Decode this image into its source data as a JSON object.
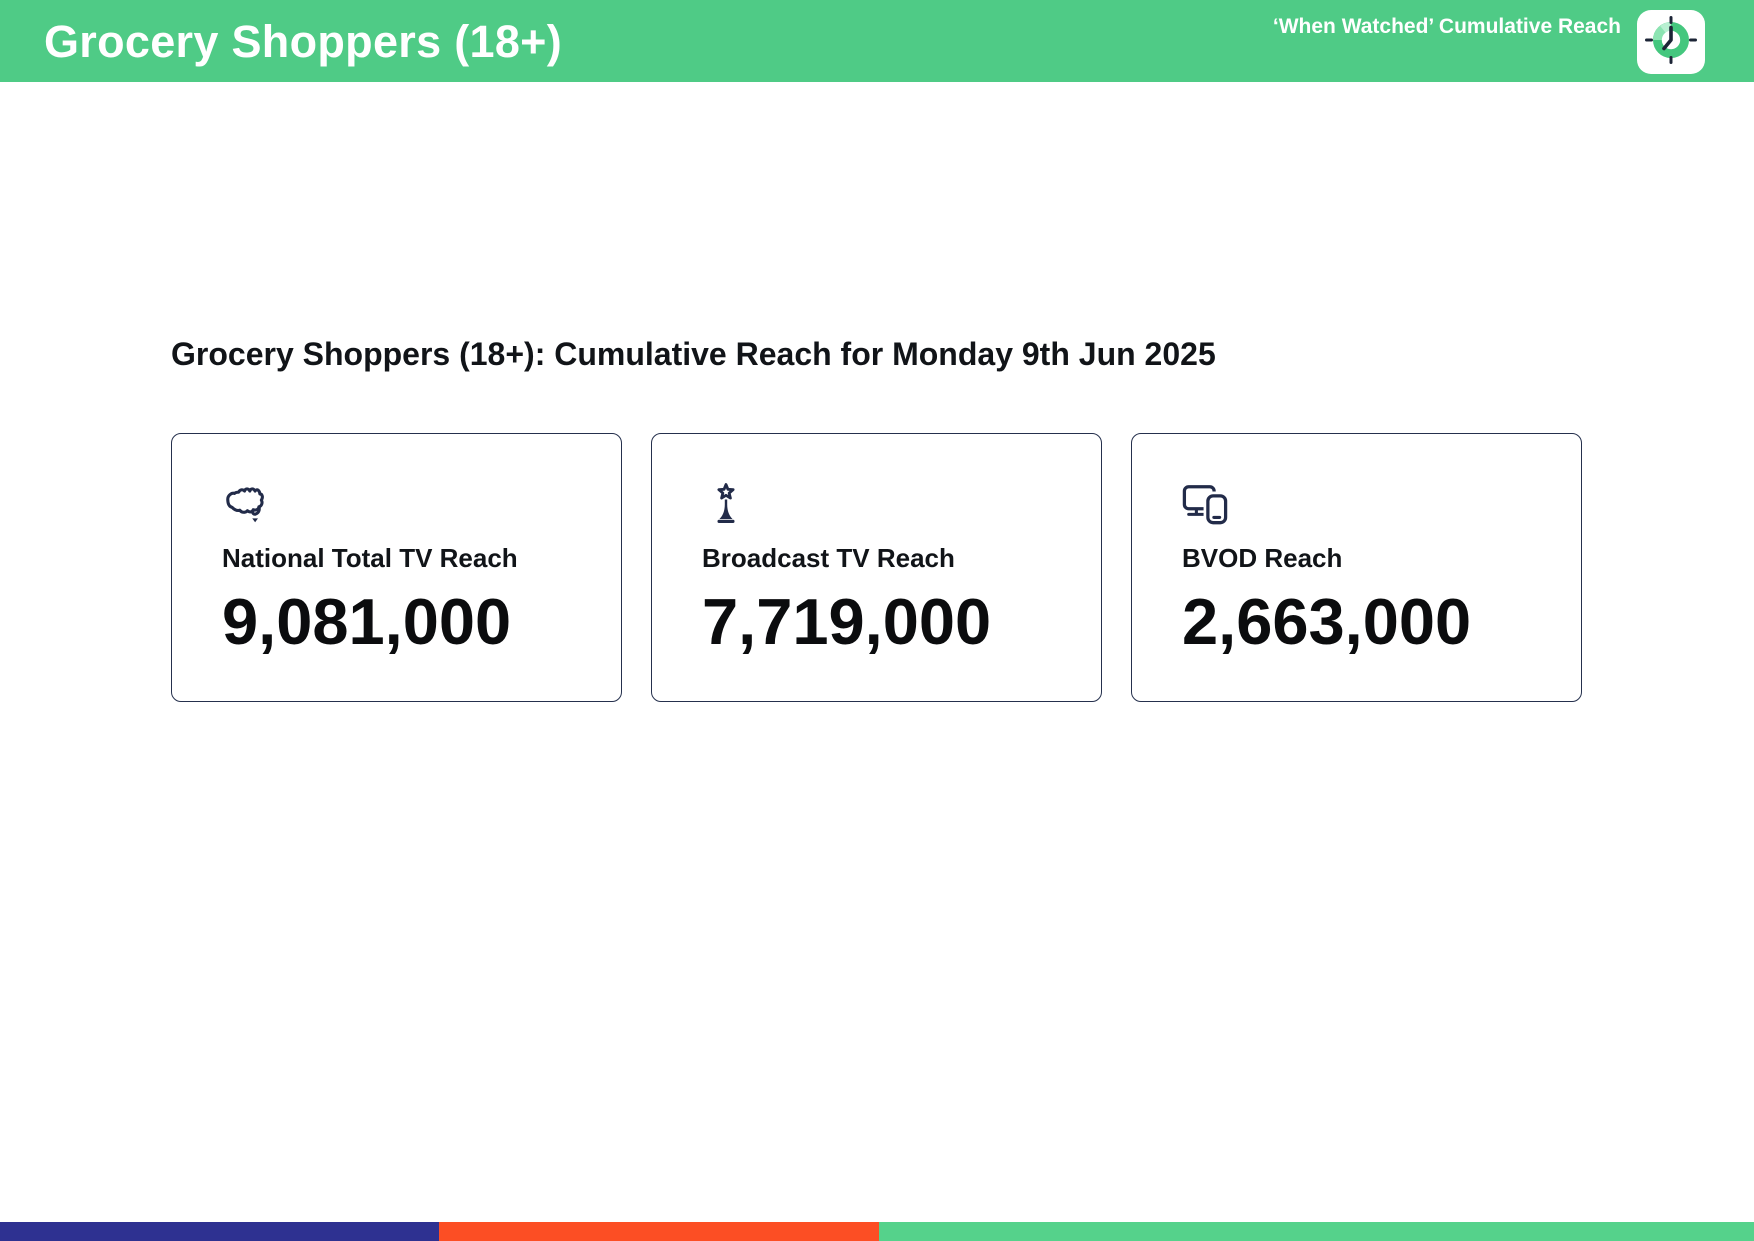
{
  "header": {
    "title": "Grocery Shoppers (18+)",
    "subtitle": "‘When Watched’ Cumulative Reach",
    "background_color": "#4fcb86",
    "logo_icon": "clock-icon"
  },
  "main": {
    "heading": "Grocery Shoppers (18+): Cumulative Reach for Monday 9th Jun 2025",
    "cards": [
      {
        "icon": "australia-map-icon",
        "label": "National Total TV Reach",
        "value": "9,081,000"
      },
      {
        "icon": "broadcast-tower-icon",
        "label": "Broadcast TV Reach",
        "value": "7,719,000"
      },
      {
        "icon": "devices-icon",
        "label": "BVOD Reach",
        "value": "2,663,000"
      }
    ],
    "card_border_color": "#25304d",
    "icon_color": "#222b49"
  },
  "footer": {
    "segments": [
      {
        "name": "navy",
        "color": "#2e3191",
        "width_pct": 25
      },
      {
        "name": "orange",
        "color": "#fc4e24",
        "width_pct": 25.1
      },
      {
        "name": "green",
        "color": "#55d28b",
        "width_pct": 49.9
      }
    ]
  }
}
